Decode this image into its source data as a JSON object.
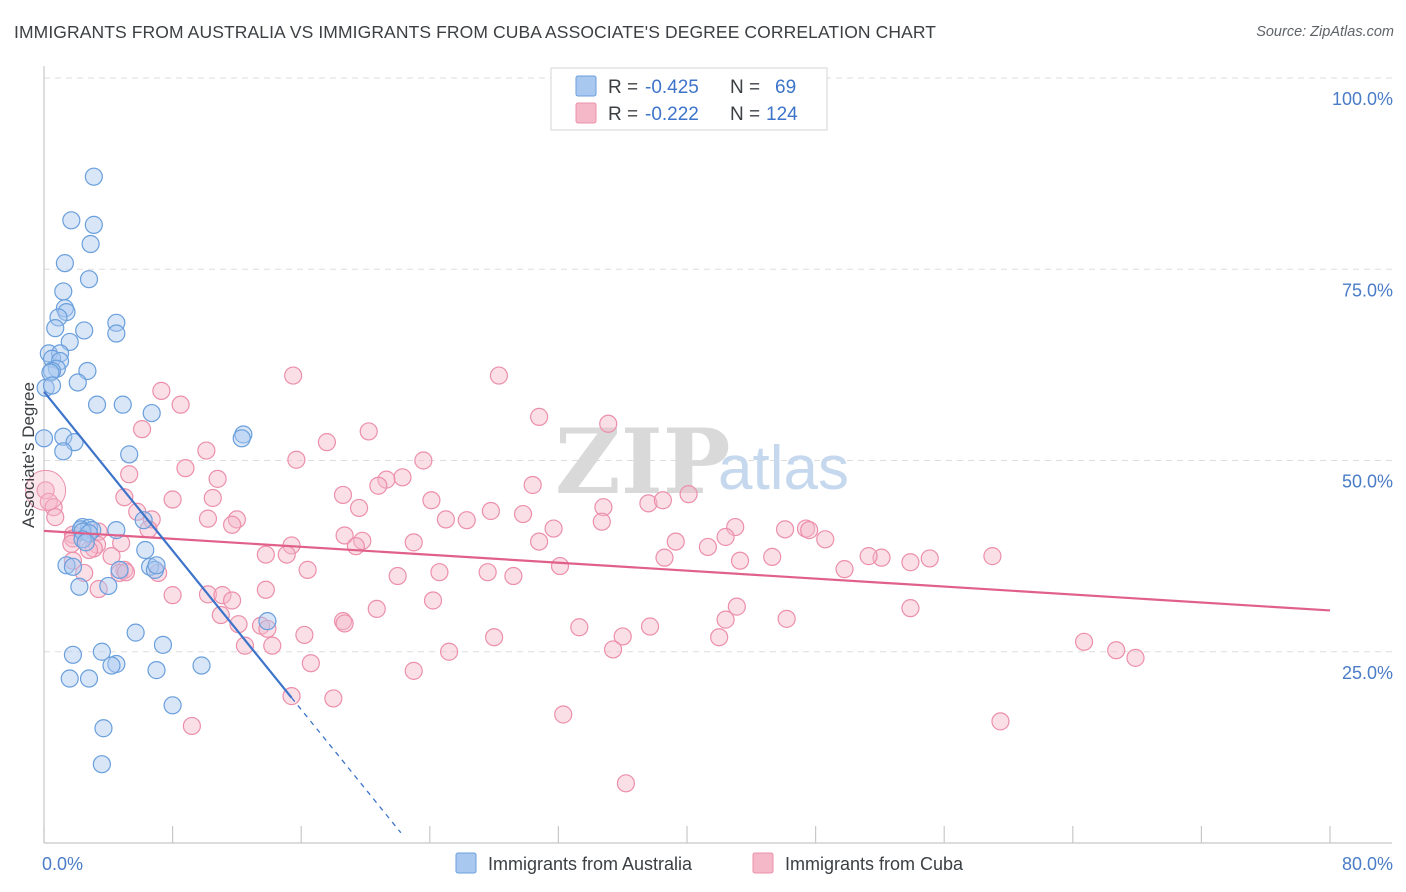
{
  "title": "IMMIGRANTS FROM AUSTRALIA VS IMMIGRANTS FROM CUBA ASSOCIATE'S DEGREE CORRELATION CHART",
  "source": "Source: ZipAtlas.com",
  "watermark": {
    "zip": "ZIP",
    "atlas": "atlas"
  },
  "colors": {
    "blue_fill": "#a9c8ef",
    "blue_stroke": "#6a9fdc",
    "blue_line": "#3d74c9",
    "pink_fill": "#f5b8c9",
    "pink_stroke": "#ec8fab",
    "pink_line": "#e0608a",
    "tick_label": "#4a7cc7",
    "grid": "#dddddd"
  },
  "legend": {
    "rows": [
      {
        "r_label": "R =",
        "r_value": "-0.425",
        "n_label": "N =",
        "n_value": "69"
      },
      {
        "r_label": "R =",
        "r_value": "-0.222",
        "n_label": "N =",
        "n_value": "124"
      }
    ]
  },
  "chart_data": {
    "type": "scatter",
    "title": "IMMIGRANTS FROM AUSTRALIA VS IMMIGRANTS FROM CUBA ASSOCIATE'S DEGREE CORRELATION CHART",
    "xlabel": "",
    "ylabel": "Associate's Degree",
    "xlim": [
      0,
      80
    ],
    "ylim": [
      0,
      100
    ],
    "x_tick_labels": [
      "0.0%",
      "80.0%"
    ],
    "y_ticks": [
      25,
      50,
      75,
      100
    ],
    "y_tick_labels": [
      "25.0%",
      "50.0%",
      "75.0%",
      "100.0%"
    ],
    "legend_position": "top-center",
    "series": [
      {
        "name": "Immigrants from Australia",
        "color": "blue",
        "r": -0.425,
        "n": 69,
        "trend": {
          "x0": 0,
          "y0": 59.0,
          "x1": 15.4,
          "y1": 19.0,
          "dash_to_x": 22.2
        },
        "points": [
          [
            3.1,
            87.1
          ],
          [
            1.7,
            81.4
          ],
          [
            3.1,
            80.8
          ],
          [
            2.9,
            78.3
          ],
          [
            1.3,
            75.8
          ],
          [
            2.8,
            73.7
          ],
          [
            1.2,
            72.1
          ],
          [
            1.3,
            69.9
          ],
          [
            1.4,
            69.4
          ],
          [
            0.9,
            68.7
          ],
          [
            4.5,
            68.0
          ],
          [
            0.7,
            67.3
          ],
          [
            2.5,
            67.0
          ],
          [
            4.5,
            66.6
          ],
          [
            1.6,
            65.5
          ],
          [
            0.3,
            64.0
          ],
          [
            1.0,
            64.0
          ],
          [
            0.5,
            63.3
          ],
          [
            1.0,
            63.0
          ],
          [
            0.8,
            62.0
          ],
          [
            0.5,
            61.7
          ],
          [
            2.7,
            61.7
          ],
          [
            0.4,
            61.5
          ],
          [
            2.1,
            60.2
          ],
          [
            0.1,
            59.5
          ],
          [
            3.3,
            57.3
          ],
          [
            4.9,
            57.3
          ],
          [
            6.7,
            56.2
          ],
          [
            12.4,
            53.4
          ],
          [
            1.2,
            53.1
          ],
          [
            12.3,
            52.9
          ],
          [
            1.9,
            52.4
          ],
          [
            1.2,
            51.2
          ],
          [
            5.3,
            50.8
          ],
          [
            6.2,
            42.2
          ],
          [
            2.4,
            41.3
          ],
          [
            2.8,
            41.2
          ],
          [
            2.3,
            41.0
          ],
          [
            3.0,
            40.9
          ],
          [
            4.5,
            40.9
          ],
          [
            2.4,
            40.7
          ],
          [
            2.8,
            40.5
          ],
          [
            2.4,
            39.7
          ],
          [
            2.6,
            39.3
          ],
          [
            6.3,
            38.3
          ],
          [
            1.4,
            36.3
          ],
          [
            1.8,
            36.1
          ],
          [
            6.6,
            36.1
          ],
          [
            4.7,
            35.7
          ],
          [
            6.9,
            35.7
          ],
          [
            2.2,
            33.5
          ],
          [
            4.0,
            33.6
          ],
          [
            13.9,
            29.0
          ],
          [
            5.7,
            27.5
          ],
          [
            7.4,
            25.9
          ],
          [
            3.6,
            25.0
          ],
          [
            1.8,
            24.6
          ],
          [
            4.5,
            23.4
          ],
          [
            4.2,
            23.2
          ],
          [
            9.8,
            23.2
          ],
          [
            7.0,
            22.6
          ],
          [
            1.6,
            21.5
          ],
          [
            2.8,
            21.5
          ],
          [
            8.0,
            18.0
          ],
          [
            3.7,
            15.0
          ],
          [
            3.6,
            10.3
          ],
          [
            0.0,
            52.9
          ],
          [
            0.5,
            59.8
          ],
          [
            7.0,
            36.3
          ]
        ]
      },
      {
        "name": "Immigrants from Cuba",
        "color": "pink",
        "r": -0.222,
        "n": 124,
        "trend": {
          "x0": 0,
          "y0": 40.8,
          "x1": 80,
          "y1": 30.4
        },
        "points": [
          [
            15.5,
            61.1
          ],
          [
            28.3,
            61.1
          ],
          [
            7.3,
            59.1
          ],
          [
            8.5,
            57.3
          ],
          [
            30.8,
            55.7
          ],
          [
            35.1,
            54.8
          ],
          [
            6.1,
            54.1
          ],
          [
            20.2,
            53.8
          ],
          [
            17.6,
            52.4
          ],
          [
            10.1,
            51.3
          ],
          [
            15.7,
            50.1
          ],
          [
            23.6,
            50.0
          ],
          [
            8.8,
            49.0
          ],
          [
            5.3,
            48.2
          ],
          [
            22.3,
            47.8
          ],
          [
            10.8,
            47.6
          ],
          [
            21.3,
            47.5
          ],
          [
            20.8,
            46.7
          ],
          [
            30.4,
            46.8
          ],
          [
            0.1,
            46.1
          ],
          [
            40.1,
            45.6
          ],
          [
            18.6,
            45.5
          ],
          [
            10.5,
            45.1
          ],
          [
            5.0,
            45.2
          ],
          [
            8.0,
            44.9
          ],
          [
            24.1,
            44.8
          ],
          [
            37.6,
            44.4
          ],
          [
            38.5,
            44.8
          ],
          [
            0.3,
            44.6
          ],
          [
            34.8,
            43.9
          ],
          [
            19.6,
            43.8
          ],
          [
            0.6,
            43.9
          ],
          [
            29.8,
            43.0
          ],
          [
            27.8,
            43.4
          ],
          [
            5.8,
            43.3
          ],
          [
            0.7,
            42.6
          ],
          [
            12.0,
            42.3
          ],
          [
            6.7,
            42.3
          ],
          [
            10.2,
            42.4
          ],
          [
            25.0,
            42.3
          ],
          [
            34.7,
            42.0
          ],
          [
            26.3,
            42.2
          ],
          [
            11.7,
            41.6
          ],
          [
            6.5,
            41.0
          ],
          [
            31.7,
            41.1
          ],
          [
            43.0,
            41.3
          ],
          [
            46.1,
            41.0
          ],
          [
            47.4,
            41.1
          ],
          [
            47.6,
            40.9
          ],
          [
            3.4,
            40.7
          ],
          [
            18.7,
            40.2
          ],
          [
            1.8,
            40.3
          ],
          [
            42.4,
            40.0
          ],
          [
            1.8,
            39.8
          ],
          [
            48.6,
            39.7
          ],
          [
            19.8,
            39.5
          ],
          [
            39.3,
            39.4
          ],
          [
            30.8,
            39.4
          ],
          [
            23.0,
            39.3
          ],
          [
            4.8,
            39.2
          ],
          [
            3.3,
            39.0
          ],
          [
            1.7,
            39.1
          ],
          [
            15.4,
            38.9
          ],
          [
            19.4,
            38.8
          ],
          [
            41.3,
            38.7
          ],
          [
            3.1,
            38.5
          ],
          [
            2.8,
            38.3
          ],
          [
            13.8,
            37.7
          ],
          [
            15.1,
            37.7
          ],
          [
            45.3,
            37.4
          ],
          [
            38.6,
            37.3
          ],
          [
            52.1,
            37.3
          ],
          [
            4.2,
            37.5
          ],
          [
            51.3,
            37.5
          ],
          [
            59.0,
            37.5
          ],
          [
            55.1,
            37.2
          ],
          [
            43.3,
            36.9
          ],
          [
            1.8,
            36.9
          ],
          [
            53.9,
            36.7
          ],
          [
            32.1,
            36.2
          ],
          [
            49.8,
            35.8
          ],
          [
            5.0,
            35.7
          ],
          [
            16.4,
            35.7
          ],
          [
            24.6,
            35.4
          ],
          [
            2.5,
            35.3
          ],
          [
            7.1,
            35.3
          ],
          [
            27.6,
            35.4
          ],
          [
            4.7,
            35.3
          ],
          [
            5.1,
            35.4
          ],
          [
            29.2,
            34.9
          ],
          [
            22.0,
            34.9
          ],
          [
            3.4,
            33.2
          ],
          [
            13.8,
            33.1
          ],
          [
            10.2,
            32.5
          ],
          [
            11.1,
            32.4
          ],
          [
            8.0,
            32.4
          ],
          [
            24.2,
            31.7
          ],
          [
            11.7,
            31.7
          ],
          [
            20.7,
            30.6
          ],
          [
            43.1,
            30.9
          ],
          [
            53.9,
            30.7
          ],
          [
            18.6,
            29.0
          ],
          [
            13.5,
            28.4
          ],
          [
            12.1,
            28.6
          ],
          [
            33.3,
            28.2
          ],
          [
            18.7,
            28.7
          ],
          [
            42.4,
            29.2
          ],
          [
            46.2,
            29.3
          ],
          [
            37.7,
            28.3
          ],
          [
            16.2,
            27.2
          ],
          [
            28.0,
            26.9
          ],
          [
            36.0,
            27.0
          ],
          [
            42.0,
            26.9
          ],
          [
            64.7,
            26.3
          ],
          [
            35.4,
            25.3
          ],
          [
            25.2,
            25.0
          ],
          [
            66.7,
            25.2
          ],
          [
            67.9,
            24.2
          ],
          [
            12.5,
            25.8
          ],
          [
            16.6,
            23.5
          ],
          [
            23.0,
            22.5
          ],
          [
            15.4,
            19.2
          ],
          [
            18.0,
            18.9
          ],
          [
            32.3,
            16.8
          ],
          [
            59.5,
            15.9
          ],
          [
            9.2,
            15.3
          ],
          [
            36.2,
            7.8
          ],
          [
            14.2,
            25.8
          ],
          [
            13.9,
            28.0
          ],
          [
            11.0,
            29.8
          ]
        ]
      }
    ]
  }
}
